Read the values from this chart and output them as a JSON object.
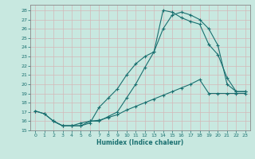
{
  "xlabel": "Humidex (Indice chaleur)",
  "bg_color": "#c8e8e0",
  "grid_color": "#dde8e4",
  "line_color": "#1a7070",
  "spine_color": "#888888",
  "xlim": [
    -0.5,
    23.5
  ],
  "ylim": [
    15,
    28.6
  ],
  "yticks": [
    15,
    16,
    17,
    18,
    19,
    20,
    21,
    22,
    23,
    24,
    25,
    26,
    27,
    28
  ],
  "xticks": [
    0,
    1,
    2,
    3,
    4,
    5,
    6,
    7,
    8,
    9,
    10,
    11,
    12,
    13,
    14,
    15,
    16,
    17,
    18,
    19,
    20,
    21,
    22,
    23
  ],
  "line_top_x": [
    0,
    1,
    2,
    3,
    4,
    5,
    6,
    7,
    8,
    9,
    10,
    11,
    12,
    13,
    14,
    15,
    16,
    17,
    18,
    19,
    20,
    21,
    22,
    23
  ],
  "line_top_y": [
    17.1,
    16.8,
    16.0,
    15.5,
    15.5,
    15.5,
    15.8,
    17.5,
    18.5,
    19.5,
    21.0,
    22.2,
    23.0,
    23.5,
    28.0,
    27.8,
    27.2,
    26.8,
    26.5,
    24.3,
    23.2,
    20.7,
    19.2,
    19.2
  ],
  "line_mid_x": [
    2,
    3,
    4,
    5,
    6,
    7,
    8,
    9,
    10,
    11,
    12,
    13,
    14,
    15,
    16,
    17,
    18,
    19,
    20,
    21,
    22,
    23
  ],
  "line_mid_y": [
    16.0,
    15.5,
    15.5,
    15.5,
    16.0,
    16.0,
    16.5,
    17.0,
    18.5,
    20.0,
    21.8,
    23.5,
    26.0,
    27.5,
    27.8,
    27.5,
    27.0,
    26.0,
    24.2,
    20.0,
    19.2,
    19.2
  ],
  "line_bot_x": [
    0,
    1,
    2,
    3,
    4,
    5,
    6,
    7,
    8,
    9,
    10,
    11,
    12,
    13,
    14,
    15,
    16,
    17,
    18,
    19,
    20,
    21,
    22,
    23
  ],
  "line_bot_y": [
    17.1,
    16.8,
    16.0,
    15.5,
    15.5,
    15.8,
    16.0,
    16.1,
    16.4,
    16.7,
    17.2,
    17.6,
    18.0,
    18.4,
    18.8,
    19.2,
    19.6,
    20.0,
    20.5,
    19.0,
    19.0,
    19.0,
    19.0,
    19.0
  ]
}
